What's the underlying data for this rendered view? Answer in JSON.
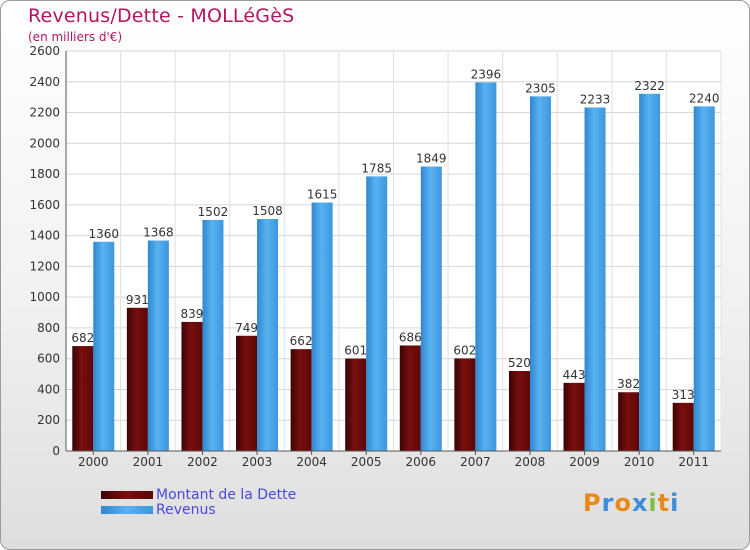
{
  "chart_data": {
    "type": "bar",
    "title": "Revenus/Dette - MOLLéGèS",
    "subtitle": "(en milliers d'€)",
    "categories": [
      "2000",
      "2001",
      "2002",
      "2003",
      "2004",
      "2005",
      "2006",
      "2007",
      "2008",
      "2009",
      "2010",
      "2011"
    ],
    "series": [
      {
        "name": "Montant de la Dette",
        "color": "#6b0a0a",
        "values": [
          682,
          931,
          839,
          749,
          662,
          601,
          686,
          602,
          520,
          443,
          382,
          313
        ]
      },
      {
        "name": "Revenus",
        "color": "#4aa3e6",
        "values": [
          1360,
          1368,
          1502,
          1508,
          1615,
          1785,
          1849,
          2396,
          2305,
          2233,
          2322,
          2240
        ]
      }
    ],
    "ylim": [
      0,
      2600
    ],
    "yticks": [
      0,
      200,
      400,
      600,
      800,
      1000,
      1200,
      1400,
      1600,
      1800,
      2000,
      2200,
      2400,
      2600
    ],
    "grid": true,
    "legend_position": "bottom-left"
  },
  "logo": {
    "text": "Proxiti",
    "letters": [
      "P",
      "r",
      "o",
      "x",
      "i",
      "t",
      "i"
    ],
    "colors": [
      "#e88a1a",
      "#3b8ed8",
      "#e88a1a",
      "#3b8ed8",
      "#7cc142",
      "#e88a1a",
      "#3b8ed8"
    ]
  }
}
